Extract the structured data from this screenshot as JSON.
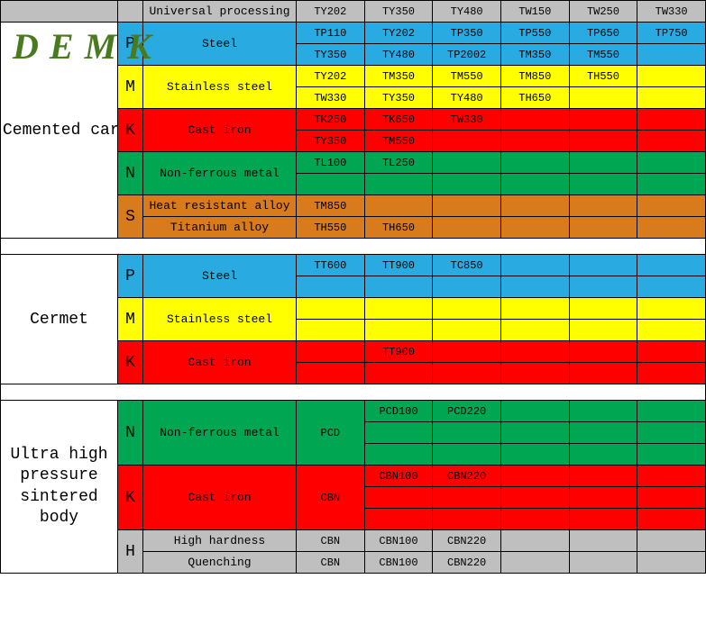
{
  "logo": "DEMK",
  "colors": {
    "grey": "#bfbfbf",
    "blue": "#29abe2",
    "yellow": "#ffff00",
    "red": "#ff0000",
    "green": "#00a651",
    "orange": "#d87b1c",
    "white": "#ffffff"
  },
  "header": {
    "label": "Universal processing",
    "cols": [
      "TY202",
      "TY350",
      "TY480",
      "TW150",
      "TW250",
      "TW330"
    ]
  },
  "sections": [
    {
      "name": "Cemented carbide",
      "groups": [
        {
          "code": "P",
          "color": "blue",
          "materials": [
            "Steel"
          ],
          "rows": [
            [
              "TP110",
              "TY202",
              "TP350",
              "TP550",
              "TP650",
              "TP750"
            ],
            [
              "TY350",
              "TY480",
              "TP2002",
              "TM350",
              "TM550",
              ""
            ]
          ]
        },
        {
          "code": "M",
          "color": "yellow",
          "materials": [
            "Stainless steel"
          ],
          "rows": [
            [
              "TY202",
              "TM350",
              "TM550",
              "TM850",
              "TH550",
              ""
            ],
            [
              "TW330",
              "TY350",
              "TY480",
              "TH650",
              "",
              ""
            ]
          ]
        },
        {
          "code": "K",
          "color": "red",
          "materials": [
            "Cast iron"
          ],
          "rows": [
            [
              "TK250",
              "TK650",
              "TW330",
              "",
              "",
              ""
            ],
            [
              "TY350",
              "TM550",
              "",
              "",
              "",
              ""
            ]
          ]
        },
        {
          "code": "N",
          "color": "green",
          "materials": [
            "Non-ferrous metal"
          ],
          "rows": [
            [
              "TL100",
              "TL250",
              "",
              "",
              "",
              ""
            ],
            [
              "",
              "",
              "",
              "",
              "",
              ""
            ]
          ]
        },
        {
          "code": "S",
          "color": "orange",
          "materials": [
            "Heat resistant alloy",
            "Titanium alloy"
          ],
          "rows": [
            [
              "TM850",
              "",
              "",
              "",
              "",
              ""
            ],
            [
              "TH550",
              "TH650",
              "",
              "",
              "",
              ""
            ]
          ]
        }
      ]
    },
    {
      "name": "Cermet",
      "groups": [
        {
          "code": "P",
          "color": "blue",
          "materials": [
            "Steel"
          ],
          "rows": [
            [
              "TT600",
              "TT900",
              "TC850",
              "",
              "",
              ""
            ],
            [
              "",
              "",
              "",
              "",
              "",
              ""
            ]
          ]
        },
        {
          "code": "M",
          "color": "yellow",
          "materials": [
            "Stainless steel"
          ],
          "rows": [
            [
              "",
              "",
              "",
              "",
              "",
              ""
            ],
            [
              "",
              "",
              "",
              "",
              "",
              ""
            ]
          ]
        },
        {
          "code": "K",
          "color": "red",
          "materials": [
            "Cast iron"
          ],
          "rows": [
            [
              "",
              "TT900",
              "",
              "",
              "",
              ""
            ],
            [
              "",
              "",
              "",
              "",
              "",
              ""
            ]
          ]
        }
      ]
    },
    {
      "name": "Ultra high pressure sintered body",
      "groups": [
        {
          "code": "N",
          "color": "green",
          "materials": [
            "Non-ferrous metal"
          ],
          "extraCol": "PCD",
          "rows": [
            [
              "PCD100",
              "PCD220",
              "",
              "",
              ""
            ],
            [
              "",
              "",
              "",
              "",
              ""
            ],
            [
              "",
              "",
              "",
              "",
              ""
            ]
          ]
        },
        {
          "code": "K",
          "color": "red",
          "materials": [
            "Cast iron"
          ],
          "extraCol": "CBN",
          "rows": [
            [
              "CBN100",
              "CBN220",
              "",
              "",
              ""
            ],
            [
              "",
              "",
              "",
              "",
              ""
            ],
            [
              "",
              "",
              "",
              "",
              ""
            ]
          ]
        },
        {
          "code": "H",
          "color": "grey",
          "materials": [
            "High hardness",
            "Quenching"
          ],
          "extras": [
            "CBN",
            "CBN"
          ],
          "rows": [
            [
              "CBN100",
              "CBN220",
              "",
              "",
              ""
            ],
            [
              "CBN100",
              "CBN220",
              "",
              "",
              ""
            ]
          ]
        }
      ]
    }
  ]
}
